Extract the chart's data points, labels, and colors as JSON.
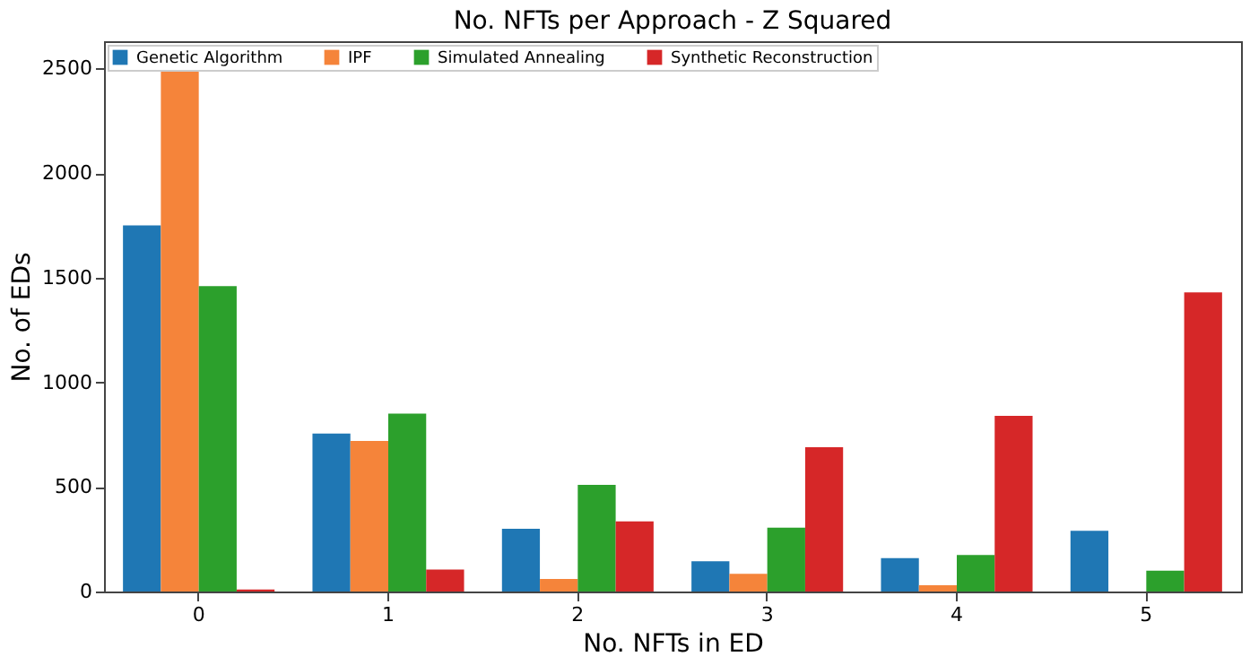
{
  "chart_data": {
    "type": "bar",
    "title": "No. NFTs per Approach - Z Squared",
    "xlabel": "No. NFTs in ED",
    "ylabel": "No. of EDs",
    "categories": [
      "0",
      "1",
      "2",
      "3",
      "4",
      "5"
    ],
    "series": [
      {
        "name": "Genetic Algorithm",
        "color": "#1f77b4",
        "values": [
          1750,
          755,
          300,
          145,
          160,
          290
        ]
      },
      {
        "name": "IPF",
        "color": "#f5843a",
        "values": [
          2510,
          720,
          60,
          85,
          30,
          0
        ]
      },
      {
        "name": "Simulated Annealing",
        "color": "#2ca02c",
        "values": [
          1460,
          850,
          510,
          305,
          175,
          100
        ]
      },
      {
        "name": "Synthetic Reconstruction",
        "color": "#d62728",
        "values": [
          10,
          105,
          335,
          690,
          840,
          1430
        ]
      }
    ],
    "ylim": [
      0,
      2630
    ],
    "yticks": [
      0,
      500,
      1000,
      1500,
      2000,
      2500
    ],
    "grid": false,
    "legend": "top left"
  }
}
